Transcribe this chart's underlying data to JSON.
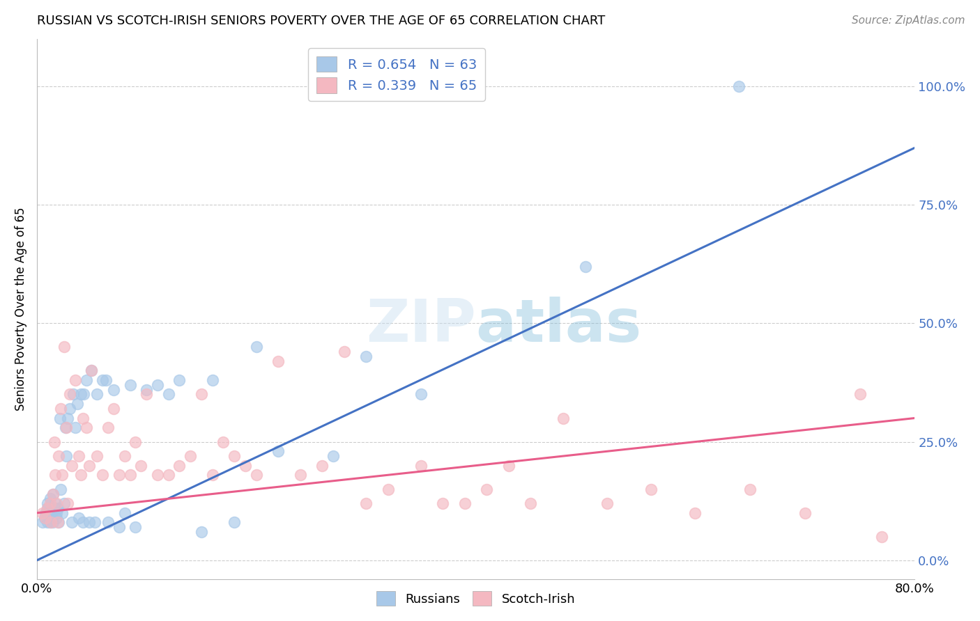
{
  "title": "RUSSIAN VS SCOTCH-IRISH SENIORS POVERTY OVER THE AGE OF 65 CORRELATION CHART",
  "source": "Source: ZipAtlas.com",
  "ylabel": "Seniors Poverty Over the Age of 65",
  "xlim": [
    0.0,
    0.8
  ],
  "ylim": [
    -0.04,
    1.1
  ],
  "yticks": [
    0.0,
    0.25,
    0.5,
    0.75,
    1.0
  ],
  "ytick_labels": [
    "0.0%",
    "25.0%",
    "50.0%",
    "75.0%",
    "100.0%"
  ],
  "xticks": [
    0.0,
    0.2,
    0.4,
    0.6,
    0.8
  ],
  "xtick_labels": [
    "0.0%",
    "",
    "",
    "",
    "80.0%"
  ],
  "watermark": "ZIPatlas",
  "legend_r1": "R = 0.654   N = 63",
  "legend_r2": "R = 0.339   N = 65",
  "color_russian": "#a8c8e8",
  "color_scotch": "#f4b8c1",
  "color_trendline_russian": "#4472c4",
  "color_trendline_scotch": "#e85d8a",
  "trendline_russian_x0": 0.0,
  "trendline_russian_y0": 0.0,
  "trendline_russian_x1": 0.8,
  "trendline_russian_y1": 0.87,
  "trendline_scotch_x0": 0.0,
  "trendline_scotch_y0": 0.1,
  "trendline_scotch_x1": 0.8,
  "trendline_scotch_y1": 0.3,
  "russians_x": [
    0.005,
    0.007,
    0.008,
    0.009,
    0.01,
    0.01,
    0.01,
    0.011,
    0.012,
    0.012,
    0.013,
    0.014,
    0.015,
    0.015,
    0.016,
    0.017,
    0.018,
    0.018,
    0.019,
    0.02,
    0.021,
    0.022,
    0.023,
    0.025,
    0.026,
    0.027,
    0.028,
    0.03,
    0.032,
    0.033,
    0.035,
    0.037,
    0.038,
    0.04,
    0.042,
    0.043,
    0.045,
    0.048,
    0.05,
    0.053,
    0.055,
    0.06,
    0.063,
    0.065,
    0.07,
    0.075,
    0.08,
    0.085,
    0.09,
    0.1,
    0.11,
    0.12,
    0.13,
    0.15,
    0.16,
    0.18,
    0.2,
    0.22,
    0.27,
    0.3,
    0.35,
    0.5,
    0.64
  ],
  "russians_y": [
    0.08,
    0.09,
    0.1,
    0.1,
    0.12,
    0.11,
    0.08,
    0.09,
    0.13,
    0.08,
    0.1,
    0.09,
    0.14,
    0.08,
    0.11,
    0.12,
    0.1,
    0.09,
    0.11,
    0.08,
    0.3,
    0.15,
    0.1,
    0.12,
    0.28,
    0.22,
    0.3,
    0.32,
    0.08,
    0.35,
    0.28,
    0.33,
    0.09,
    0.35,
    0.08,
    0.35,
    0.38,
    0.08,
    0.4,
    0.08,
    0.35,
    0.38,
    0.38,
    0.08,
    0.36,
    0.07,
    0.1,
    0.37,
    0.07,
    0.36,
    0.37,
    0.35,
    0.38,
    0.06,
    0.38,
    0.08,
    0.45,
    0.23,
    0.22,
    0.43,
    0.35,
    0.62,
    1.0
  ],
  "scotch_x": [
    0.005,
    0.008,
    0.01,
    0.012,
    0.013,
    0.015,
    0.016,
    0.017,
    0.018,
    0.019,
    0.02,
    0.022,
    0.023,
    0.025,
    0.027,
    0.028,
    0.03,
    0.032,
    0.035,
    0.038,
    0.04,
    0.042,
    0.045,
    0.048,
    0.05,
    0.055,
    0.06,
    0.065,
    0.07,
    0.075,
    0.08,
    0.085,
    0.09,
    0.095,
    0.1,
    0.11,
    0.12,
    0.13,
    0.14,
    0.15,
    0.16,
    0.17,
    0.18,
    0.19,
    0.2,
    0.22,
    0.24,
    0.26,
    0.28,
    0.3,
    0.32,
    0.35,
    0.37,
    0.39,
    0.41,
    0.43,
    0.45,
    0.48,
    0.52,
    0.56,
    0.6,
    0.65,
    0.7,
    0.75,
    0.77
  ],
  "scotch_y": [
    0.1,
    0.09,
    0.11,
    0.12,
    0.08,
    0.14,
    0.25,
    0.18,
    0.12,
    0.08,
    0.22,
    0.32,
    0.18,
    0.45,
    0.28,
    0.12,
    0.35,
    0.2,
    0.38,
    0.22,
    0.18,
    0.3,
    0.28,
    0.2,
    0.4,
    0.22,
    0.18,
    0.28,
    0.32,
    0.18,
    0.22,
    0.18,
    0.25,
    0.2,
    0.35,
    0.18,
    0.18,
    0.2,
    0.22,
    0.35,
    0.18,
    0.25,
    0.22,
    0.2,
    0.18,
    0.42,
    0.18,
    0.2,
    0.44,
    0.12,
    0.15,
    0.2,
    0.12,
    0.12,
    0.15,
    0.2,
    0.12,
    0.3,
    0.12,
    0.15,
    0.1,
    0.15,
    0.1,
    0.35,
    0.05
  ]
}
